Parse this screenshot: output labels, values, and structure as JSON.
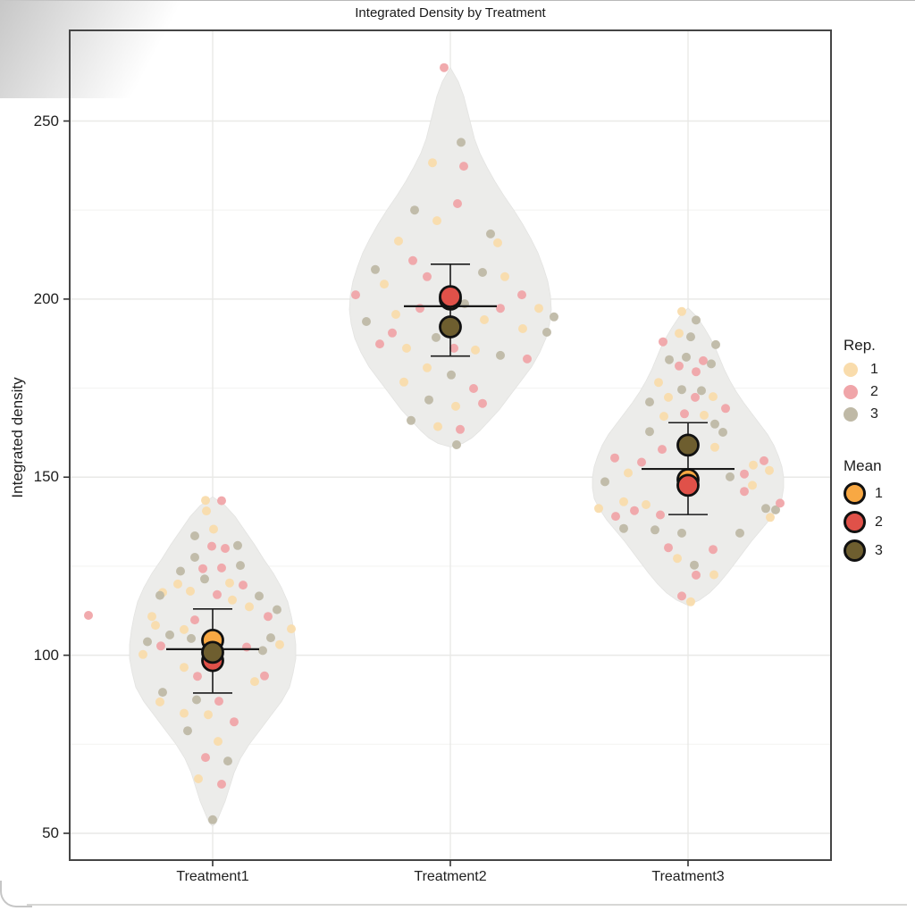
{
  "title": "Integrated Density by Treatment",
  "y_axis": {
    "label": "Integrated density",
    "ticks": [
      250,
      200,
      150,
      100,
      50
    ],
    "minor_gridlines": [
      225,
      175,
      125,
      75
    ]
  },
  "x_axis": {
    "categories": [
      "Treatment1",
      "Treatment2",
      "Treatment3"
    ]
  },
  "legend": {
    "rep": {
      "title": "Rep.",
      "items": [
        {
          "label": "1",
          "color": "#F9DCAC"
        },
        {
          "label": "2",
          "color": "#F0A5A9"
        },
        {
          "label": "3",
          "color": "#BFB9A6"
        }
      ]
    },
    "mean": {
      "title": "Mean",
      "items": [
        {
          "label": "1",
          "color": "#F8A843"
        },
        {
          "label": "2",
          "color": "#E05149"
        },
        {
          "label": "3",
          "color": "#6E5E2F"
        }
      ]
    }
  },
  "colors": {
    "violin_fill": "#ECECEA",
    "violin_stroke": "#E3E3E1",
    "grid_major": "#E9E9E7",
    "grid_minor": "#F4F4F2",
    "panel_border": "#454545",
    "stat_line": "#1a1a1a",
    "rep": {
      "1": "#F9DCAC",
      "2": "#F0A5A9",
      "3": "#BFB9A6"
    },
    "mean": {
      "1": "#F8A843",
      "2": "#E05149",
      "3": "#6E5E2F"
    }
  },
  "chart_data": {
    "type": "violin",
    "title": "Integrated Density by Treatment",
    "xlabel": "",
    "ylabel": "Integrated density",
    "ylim": [
      41,
      276
    ],
    "categories": [
      "Treatment1",
      "Treatment2",
      "Treatment3"
    ],
    "summary": [
      {
        "category": "Treatment1",
        "mean": 101.7,
        "ymin": 89.4,
        "ymax": 113.0,
        "rep_means": {
          "1": 104.2,
          "2": 98.5,
          "3": 100.8
        }
      },
      {
        "category": "Treatment2",
        "mean": 198.0,
        "ymin": 184.0,
        "ymax": 209.8,
        "rep_means": {
          "1": 200.0,
          "2": 200.7,
          "3": 192.2
        }
      },
      {
        "category": "Treatment3",
        "mean": 152.3,
        "ymin": 139.5,
        "ymax": 165.3,
        "rep_means": {
          "1": 149.3,
          "2": 147.7,
          "3": 159.0
        }
      }
    ],
    "violin_profiles": [
      [
        [
          144.5,
          0
        ],
        [
          142,
          14
        ],
        [
          139,
          25
        ],
        [
          135,
          36
        ],
        [
          131,
          47
        ],
        [
          127,
          57
        ],
        [
          123,
          68
        ],
        [
          119,
          77
        ],
        [
          115,
          84
        ],
        [
          111,
          88
        ],
        [
          107,
          91
        ],
        [
          103,
          93
        ],
        [
          99,
          93
        ],
        [
          95,
          90
        ],
        [
          91,
          86
        ],
        [
          87,
          77
        ],
        [
          83,
          65
        ],
        [
          79,
          53
        ],
        [
          75,
          41
        ],
        [
          71,
          31
        ],
        [
          67,
          24
        ],
        [
          63,
          19
        ],
        [
          59,
          14
        ],
        [
          56,
          9
        ],
        [
          53,
          4
        ],
        [
          52,
          0
        ]
      ],
      [
        [
          265,
          0
        ],
        [
          261,
          9
        ],
        [
          257,
          15
        ],
        [
          253,
          19
        ],
        [
          249,
          23
        ],
        [
          245,
          27
        ],
        [
          241,
          33
        ],
        [
          237,
          41
        ],
        [
          233,
          50
        ],
        [
          229,
          60
        ],
        [
          225,
          71
        ],
        [
          221,
          81
        ],
        [
          217,
          90
        ],
        [
          213,
          98
        ],
        [
          209,
          104
        ],
        [
          205,
          109
        ],
        [
          201,
          112
        ],
        [
          197,
          113
        ],
        [
          193,
          111
        ],
        [
          189,
          107
        ],
        [
          185,
          100
        ],
        [
          181,
          91
        ],
        [
          177,
          79
        ],
        [
          173,
          67
        ],
        [
          169,
          55
        ],
        [
          166,
          44
        ],
        [
          163,
          33
        ],
        [
          161,
          24
        ],
        [
          159.5,
          14
        ],
        [
          158.5,
          0
        ]
      ],
      [
        [
          197.5,
          0
        ],
        [
          195,
          10
        ],
        [
          192,
          18
        ],
        [
          189,
          25
        ],
        [
          186,
          31
        ],
        [
          183,
          36
        ],
        [
          180,
          41
        ],
        [
          177,
          47
        ],
        [
          174,
          54
        ],
        [
          171,
          62
        ],
        [
          168,
          71
        ],
        [
          165,
          80
        ],
        [
          162,
          89
        ],
        [
          159,
          96
        ],
        [
          156,
          101
        ],
        [
          153,
          105
        ],
        [
          150,
          107
        ],
        [
          147,
          107
        ],
        [
          144,
          105
        ],
        [
          141,
          99
        ],
        [
          138,
          91
        ],
        [
          135,
          81
        ],
        [
          132,
          71
        ],
        [
          129,
          62
        ],
        [
          126,
          53
        ],
        [
          123,
          44
        ],
        [
          120,
          34
        ],
        [
          117.5,
          24
        ],
        [
          115.5,
          13
        ],
        [
          114,
          0
        ]
      ]
    ],
    "points": {
      "Treatment1": [
        [
          -8,
          143.5,
          1
        ],
        [
          10,
          143.4,
          2
        ],
        [
          -7,
          140.5,
          1
        ],
        [
          1,
          135.4,
          1
        ],
        [
          -20,
          133.5,
          3
        ],
        [
          -1,
          130.6,
          2
        ],
        [
          14,
          130,
          2
        ],
        [
          28,
          130.8,
          3
        ],
        [
          -20,
          127.5,
          3
        ],
        [
          -11,
          124.3,
          2
        ],
        [
          10,
          124.5,
          2
        ],
        [
          31,
          125.2,
          3
        ],
        [
          -36,
          123.6,
          3
        ],
        [
          -39,
          120,
          1
        ],
        [
          -9,
          121.4,
          3
        ],
        [
          19,
          120.3,
          1
        ],
        [
          34,
          119.7,
          2
        ],
        [
          -56,
          117.6,
          1
        ],
        [
          -25,
          118,
          1
        ],
        [
          5,
          117,
          2
        ],
        [
          52,
          116.6,
          3
        ],
        [
          41,
          113.6,
          1
        ],
        [
          62,
          110.9,
          2
        ],
        [
          88,
          107.4,
          1
        ],
        [
          65,
          104.9,
          3
        ],
        [
          75,
          103,
          1
        ],
        [
          -20,
          109.9,
          2
        ],
        [
          -68,
          110.9,
          1
        ],
        [
          -64,
          108.4,
          1
        ],
        [
          -73,
          103.8,
          3
        ],
        [
          -58,
          102.6,
          2
        ],
        [
          -48,
          105.7,
          3
        ],
        [
          -32,
          107.2,
          1
        ],
        [
          -24,
          104.7,
          3
        ],
        [
          -78,
          100.2,
          1
        ],
        [
          -59,
          116.8,
          3
        ],
        [
          72,
          112.8,
          3
        ],
        [
          22,
          115.5,
          1
        ],
        [
          56,
          101.3,
          3
        ],
        [
          38,
          102.3,
          2
        ],
        [
          47,
          92.6,
          1
        ],
        [
          58,
          94.2,
          2
        ],
        [
          -17,
          94.1,
          2
        ],
        [
          -32,
          96.6,
          1
        ],
        [
          -56,
          89.6,
          3
        ],
        [
          -59,
          86.9,
          1
        ],
        [
          7,
          87.1,
          2
        ],
        [
          -18,
          87.5,
          3
        ],
        [
          -32,
          83.7,
          1
        ],
        [
          -5,
          83.3,
          1
        ],
        [
          24,
          81.3,
          2
        ],
        [
          -28,
          78.8,
          3
        ],
        [
          6,
          75.8,
          1
        ],
        [
          -8,
          71.3,
          2
        ],
        [
          17,
          70.3,
          3
        ],
        [
          -16,
          65.3,
          1
        ],
        [
          10,
          63.8,
          2
        ],
        [
          0,
          53.8,
          3
        ],
        [
          -139,
          111.2,
          2
        ]
      ],
      "Treatment2": [
        [
          -7,
          265,
          2
        ],
        [
          12,
          244,
          3
        ],
        [
          -20,
          238.3,
          1
        ],
        [
          15,
          237.3,
          2
        ],
        [
          8,
          226.8,
          2
        ],
        [
          -15,
          222,
          1
        ],
        [
          -40,
          225,
          3
        ],
        [
          45,
          218.3,
          3
        ],
        [
          -58,
          216.3,
          1
        ],
        [
          53,
          215.8,
          1
        ],
        [
          -42,
          210.8,
          2
        ],
        [
          -84,
          208.3,
          3
        ],
        [
          -74,
          204.2,
          1
        ],
        [
          -26,
          206.3,
          2
        ],
        [
          36,
          207.5,
          3
        ],
        [
          61,
          206.3,
          1
        ],
        [
          80,
          201.2,
          2
        ],
        [
          99,
          197.4,
          1
        ],
        [
          108,
          190.7,
          3
        ],
        [
          56,
          197.4,
          2
        ],
        [
          38,
          194.2,
          1
        ],
        [
          16,
          198.7,
          3
        ],
        [
          -34,
          197.4,
          2
        ],
        [
          -61,
          195.7,
          1
        ],
        [
          -94,
          193.7,
          3
        ],
        [
          -106,
          201.2,
          2
        ],
        [
          116,
          195,
          3
        ],
        [
          81,
          191.7,
          1
        ],
        [
          -79,
          187.4,
          2
        ],
        [
          -49,
          186.2,
          1
        ],
        [
          -16,
          189.2,
          3
        ],
        [
          4,
          186.2,
          2
        ],
        [
          28,
          185.7,
          1
        ],
        [
          56,
          184.2,
          3
        ],
        [
          86,
          183.2,
          2
        ],
        [
          -26,
          180.7,
          1
        ],
        [
          1,
          178.7,
          3
        ],
        [
          -52,
          176.7,
          1
        ],
        [
          26,
          174.9,
          2
        ],
        [
          -24,
          171.7,
          3
        ],
        [
          6,
          169.9,
          1
        ],
        [
          36,
          170.7,
          2
        ],
        [
          -44,
          165.9,
          3
        ],
        [
          -14,
          164.2,
          1
        ],
        [
          11,
          163.4,
          2
        ],
        [
          7,
          159.1,
          3
        ],
        [
          -65,
          190.5,
          2
        ]
      ],
      "Treatment3": [
        [
          -7,
          196.5,
          1
        ],
        [
          9,
          194.1,
          3
        ],
        [
          -10,
          190.4,
          1
        ],
        [
          3,
          189.4,
          3
        ],
        [
          -28,
          188,
          2
        ],
        [
          31,
          187.2,
          3
        ],
        [
          -21,
          183,
          3
        ],
        [
          -2,
          183.7,
          3
        ],
        [
          -10,
          181.2,
          2
        ],
        [
          17,
          182.7,
          2
        ],
        [
          9,
          179.6,
          2
        ],
        [
          26,
          181.8,
          3
        ],
        [
          -33,
          176.6,
          1
        ],
        [
          -7,
          174.6,
          3
        ],
        [
          -22,
          172.4,
          1
        ],
        [
          15,
          174.3,
          3
        ],
        [
          8,
          172.4,
          2
        ],
        [
          28,
          172.6,
          1
        ],
        [
          42,
          169.3,
          2
        ],
        [
          -43,
          171.1,
          3
        ],
        [
          -27,
          167.1,
          1
        ],
        [
          -4,
          167.8,
          2
        ],
        [
          18,
          167.4,
          1
        ],
        [
          30,
          164.9,
          3
        ],
        [
          -43,
          162.8,
          3
        ],
        [
          -29,
          157.8,
          2
        ],
        [
          39,
          162.6,
          3
        ],
        [
          30,
          158.4,
          1
        ],
        [
          63,
          150.9,
          2
        ],
        [
          73,
          153.4,
          1
        ],
        [
          87,
          141.2,
          3
        ],
        [
          72,
          147.7,
          1
        ],
        [
          85,
          154.6,
          2
        ],
        [
          91,
          151.9,
          1
        ],
        [
          98,
          140.8,
          3
        ],
        [
          103,
          142.7,
          2
        ],
        [
          92,
          138.7,
          1
        ],
        [
          63,
          146,
          2
        ],
        [
          47,
          150.1,
          3
        ],
        [
          -82,
          155.4,
          2
        ],
        [
          -67,
          151.2,
          1
        ],
        [
          -93,
          148.7,
          3
        ],
        [
          -81,
          139,
          2
        ],
        [
          -72,
          143.1,
          1
        ],
        [
          -52,
          154.2,
          2
        ],
        [
          -100,
          141.2,
          1
        ],
        [
          -72,
          135.6,
          3
        ],
        [
          -60,
          140.6,
          2
        ],
        [
          -37,
          135.2,
          3
        ],
        [
          -47,
          142.3,
          1
        ],
        [
          -22,
          130.2,
          2
        ],
        [
          -12,
          127.2,
          1
        ],
        [
          7,
          125.3,
          3
        ],
        [
          9,
          122.5,
          2
        ],
        [
          29,
          122.6,
          1
        ],
        [
          58,
          134.3,
          3
        ],
        [
          28,
          129.7,
          2
        ],
        [
          -7,
          134.3,
          3
        ],
        [
          -31,
          139.4,
          2
        ],
        [
          -7,
          116.6,
          2
        ],
        [
          3,
          115,
          1
        ]
      ]
    }
  }
}
